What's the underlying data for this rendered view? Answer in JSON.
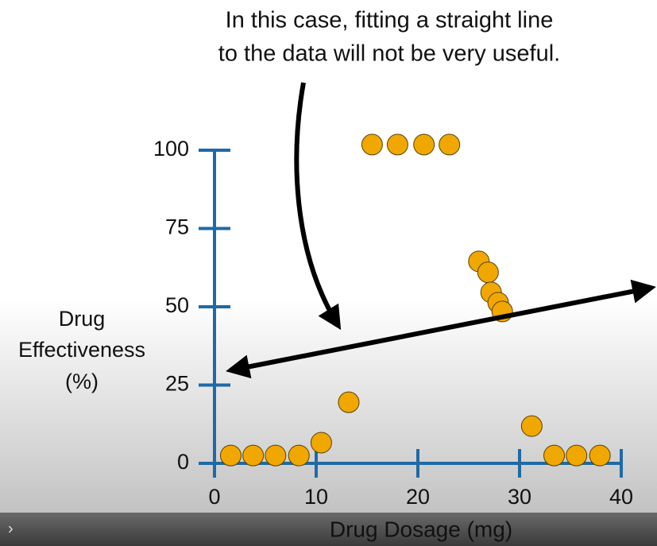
{
  "chart_data": {
    "type": "scatter",
    "annotation": [
      "In this case, fitting a straight line",
      "to the data will not be very useful."
    ],
    "ylabel": [
      "Drug",
      "Effectiveness",
      "(%)"
    ],
    "xlabel": "Drug Dosage (mg)",
    "x": [
      1.6,
      3.8,
      6.0,
      8.3,
      10.5,
      13.2,
      15.5,
      18.0,
      20.6,
      23.1,
      26.0,
      26.9,
      27.2,
      27.9,
      28.3,
      31.2,
      33.4,
      35.6,
      37.9
    ],
    "values": [
      2.5,
      2.5,
      2.5,
      2.5,
      6.6,
      19.5,
      101.8,
      101.8,
      101.8,
      101.8,
      64.5,
      61.0,
      54.6,
      51.3,
      48.5,
      11.9,
      2.5,
      2.5,
      2.5
    ],
    "color": "#f0a800",
    "xlim": [
      0,
      40
    ],
    "xticks": [
      0,
      10,
      20,
      30,
      40
    ],
    "ylim": [
      0,
      100
    ],
    "yticks": [
      0,
      25,
      50,
      75,
      100
    ],
    "axis_color": "#1f6aa5",
    "player_chevron": "›"
  }
}
